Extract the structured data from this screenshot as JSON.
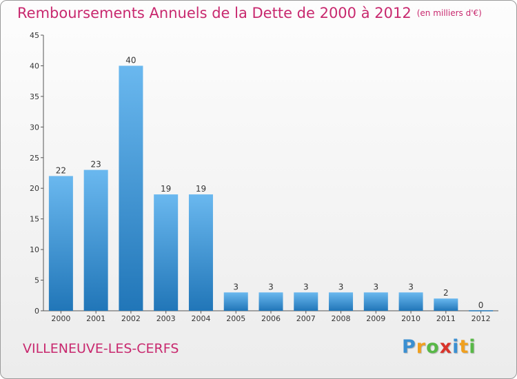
{
  "title": "Remboursements Annuels de la Dette de 2000 à 2012",
  "unit": "(en milliers d'€)",
  "commune": "VILLENEUVE-LES-CERFS",
  "logo": {
    "letters": [
      "P",
      "r",
      "o",
      "x",
      "i",
      "t",
      "i"
    ],
    "colors": [
      "#3a8fd1",
      "#f0a020",
      "#58b847",
      "#d9342b",
      "#3a8fd1",
      "#f0a020",
      "#58b847"
    ]
  },
  "colors": {
    "title": "#c8286e",
    "bar_light": "#6ab8ef",
    "bar_dark": "#2176b8",
    "axis": "#555555"
  },
  "chart_data": {
    "type": "bar",
    "title": "Remboursements Annuels de la Dette de 2000 à 2012",
    "ylabel": "en milliers d'€",
    "xlabel": "",
    "categories": [
      "2000",
      "2001",
      "2002",
      "2003",
      "2004",
      "2005",
      "2006",
      "2007",
      "2008",
      "2009",
      "2010",
      "2011",
      "2012"
    ],
    "values": [
      22,
      23,
      40,
      19,
      19,
      3,
      3,
      3,
      3,
      3,
      3,
      2,
      0
    ],
    "value_labels": [
      "22",
      "23",
      "40",
      "19",
      "19",
      "3",
      "3",
      "3",
      "3",
      "3",
      "3",
      "2",
      "0"
    ],
    "yticks": [
      0,
      5,
      10,
      15,
      20,
      25,
      30,
      35,
      40,
      45
    ],
    "ylim": [
      0,
      45
    ],
    "grid": false,
    "legend": "none"
  }
}
